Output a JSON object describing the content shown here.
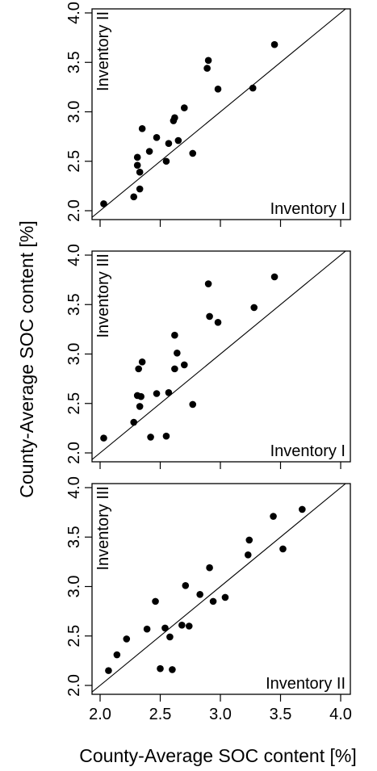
{
  "figure": {
    "xlabel": "County-Average SOC content [%]",
    "ylabel": "County-Average SOC content [%]"
  },
  "chart_data": [
    {
      "type": "scatter",
      "x_name": "Inventory I",
      "y_name": "Inventory II",
      "xlim": [
        2.0,
        4.0
      ],
      "ylim": [
        2.0,
        4.0
      ],
      "x_ticks": [
        "2.0",
        "2.5",
        "3.0",
        "3.5",
        "4.0"
      ],
      "y_ticks": [
        "2.0",
        "2.5",
        "3.0",
        "3.5",
        "4.0"
      ],
      "x_tick_labels_visible": false,
      "identity_line": true,
      "points": [
        {
          "x": 2.03,
          "y": 2.07
        },
        {
          "x": 2.28,
          "y": 2.14
        },
        {
          "x": 2.33,
          "y": 2.22
        },
        {
          "x": 2.31,
          "y": 2.46
        },
        {
          "x": 2.31,
          "y": 2.54
        },
        {
          "x": 2.33,
          "y": 2.39
        },
        {
          "x": 2.35,
          "y": 2.83
        },
        {
          "x": 2.41,
          "y": 2.6
        },
        {
          "x": 2.47,
          "y": 2.74
        },
        {
          "x": 2.55,
          "y": 2.5
        },
        {
          "x": 2.57,
          "y": 2.68
        },
        {
          "x": 2.61,
          "y": 2.91
        },
        {
          "x": 2.62,
          "y": 2.94
        },
        {
          "x": 2.65,
          "y": 2.71
        },
        {
          "x": 2.7,
          "y": 3.04
        },
        {
          "x": 2.77,
          "y": 2.58
        },
        {
          "x": 2.89,
          "y": 3.44
        },
        {
          "x": 2.9,
          "y": 3.52
        },
        {
          "x": 2.98,
          "y": 3.23
        },
        {
          "x": 3.27,
          "y": 3.24
        },
        {
          "x": 3.45,
          "y": 3.68
        }
      ]
    },
    {
      "type": "scatter",
      "x_name": "Inventory I",
      "y_name": "Inventory III",
      "xlim": [
        2.0,
        4.0
      ],
      "ylim": [
        2.0,
        4.0
      ],
      "x_ticks": [
        "2.0",
        "2.5",
        "3.0",
        "3.5",
        "4.0"
      ],
      "y_ticks": [
        "2.0",
        "2.5",
        "3.0",
        "3.5",
        "4.0"
      ],
      "x_tick_labels_visible": false,
      "identity_line": true,
      "points": [
        {
          "x": 2.03,
          "y": 2.15
        },
        {
          "x": 2.28,
          "y": 2.31
        },
        {
          "x": 2.31,
          "y": 2.58
        },
        {
          "x": 2.32,
          "y": 2.85
        },
        {
          "x": 2.33,
          "y": 2.47
        },
        {
          "x": 2.34,
          "y": 2.57
        },
        {
          "x": 2.35,
          "y": 2.92
        },
        {
          "x": 2.42,
          "y": 2.16
        },
        {
          "x": 2.47,
          "y": 2.6
        },
        {
          "x": 2.55,
          "y": 2.17
        },
        {
          "x": 2.57,
          "y": 2.61
        },
        {
          "x": 2.62,
          "y": 2.85
        },
        {
          "x": 2.62,
          "y": 3.19
        },
        {
          "x": 2.64,
          "y": 3.01
        },
        {
          "x": 2.7,
          "y": 2.89
        },
        {
          "x": 2.77,
          "y": 2.49
        },
        {
          "x": 2.9,
          "y": 3.71
        },
        {
          "x": 2.91,
          "y": 3.38
        },
        {
          "x": 2.98,
          "y": 3.32
        },
        {
          "x": 3.28,
          "y": 3.47
        },
        {
          "x": 3.45,
          "y": 3.78
        }
      ]
    },
    {
      "type": "scatter",
      "x_name": "Inventory II",
      "y_name": "Inventory III",
      "xlim": [
        2.0,
        4.0
      ],
      "ylim": [
        2.0,
        4.0
      ],
      "x_ticks": [
        "2.0",
        "2.5",
        "3.0",
        "3.5",
        "4.0"
      ],
      "y_ticks": [
        "2.0",
        "2.5",
        "3.0",
        "3.5",
        "4.0"
      ],
      "x_tick_labels_visible": true,
      "identity_line": true,
      "points": [
        {
          "x": 2.07,
          "y": 2.15
        },
        {
          "x": 2.14,
          "y": 2.31
        },
        {
          "x": 2.22,
          "y": 2.47
        },
        {
          "x": 2.39,
          "y": 2.57
        },
        {
          "x": 2.46,
          "y": 2.85
        },
        {
          "x": 2.5,
          "y": 2.17
        },
        {
          "x": 2.54,
          "y": 2.58
        },
        {
          "x": 2.58,
          "y": 2.49
        },
        {
          "x": 2.6,
          "y": 2.16
        },
        {
          "x": 2.68,
          "y": 2.61
        },
        {
          "x": 2.71,
          "y": 3.01
        },
        {
          "x": 2.74,
          "y": 2.6
        },
        {
          "x": 2.83,
          "y": 2.92
        },
        {
          "x": 2.91,
          "y": 3.19
        },
        {
          "x": 2.94,
          "y": 2.85
        },
        {
          "x": 3.04,
          "y": 2.89
        },
        {
          "x": 3.23,
          "y": 3.32
        },
        {
          "x": 3.24,
          "y": 3.47
        },
        {
          "x": 3.44,
          "y": 3.71
        },
        {
          "x": 3.52,
          "y": 3.38
        },
        {
          "x": 3.68,
          "y": 3.78
        }
      ]
    }
  ]
}
